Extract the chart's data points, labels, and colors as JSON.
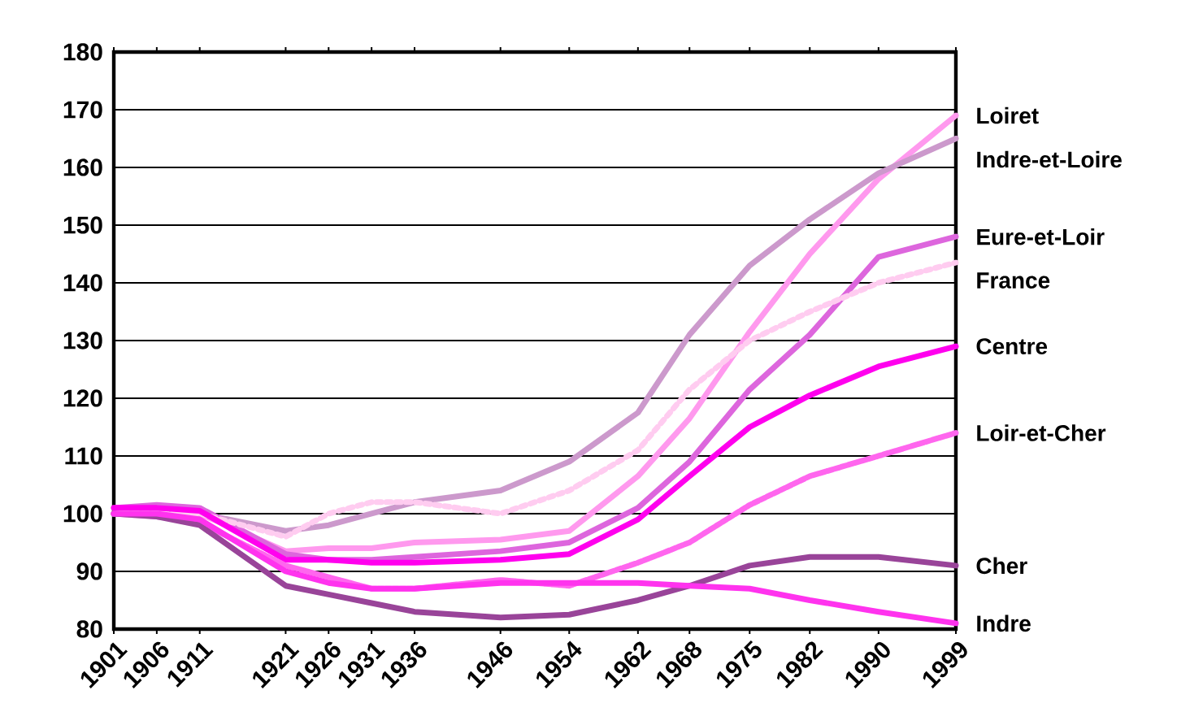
{
  "chart_data": {
    "type": "line",
    "x": [
      1901,
      1906,
      1911,
      1921,
      1926,
      1931,
      1936,
      1946,
      1954,
      1962,
      1968,
      1975,
      1982,
      1990,
      1999
    ],
    "xlim": [
      1901,
      1999
    ],
    "xticks": [
      1901,
      1906,
      1911,
      1921,
      1926,
      1931,
      1936,
      1946,
      1954,
      1962,
      1968,
      1975,
      1982,
      1990,
      1999
    ],
    "ylim": [
      80,
      180
    ],
    "yticks": [
      80,
      90,
      100,
      110,
      120,
      130,
      140,
      150,
      160,
      170,
      180
    ],
    "grid": "y",
    "marker": "none",
    "series": [
      {
        "name": "Loiret",
        "color": "#ff99ee",
        "values": [
          100,
          100,
          100,
          93.5,
          94,
          94,
          95,
          95.5,
          97,
          106.5,
          116.5,
          131.5,
          145,
          158,
          169
        ]
      },
      {
        "name": "Indre-et-Loire",
        "color": "#cc99cc",
        "values": [
          100,
          100,
          100,
          97,
          98,
          100,
          102,
          104,
          109,
          117.5,
          131,
          143,
          151,
          159,
          165
        ]
      },
      {
        "name": "Eure-et-Loir",
        "color": "#dd66dd",
        "values": [
          101,
          101.5,
          101,
          93,
          92,
          92,
          92.5,
          93.5,
          95,
          101,
          109,
          121.5,
          131,
          144.5,
          148
        ]
      },
      {
        "name": "France",
        "color": "#ffccf0",
        "line_style": "dashed",
        "values": [
          100,
          100,
          100,
          96,
          100,
          102,
          102,
          100,
          104,
          111,
          121.5,
          130,
          135,
          140,
          143.5
        ]
      },
      {
        "name": "Centre",
        "color": "#ff00ee",
        "values": [
          101,
          101,
          100.5,
          92,
          92,
          91.5,
          91.5,
          92,
          93,
          99,
          106.5,
          115,
          120.5,
          125.5,
          129
        ]
      },
      {
        "name": "Loir-et-Cher",
        "color": "#ff66ee",
        "line_style": "dotted",
        "values": [
          100,
          99.5,
          98.5,
          91,
          89,
          87,
          87,
          88.5,
          87.5,
          91.5,
          95,
          101.5,
          106.5,
          110,
          114
        ]
      },
      {
        "name": "Cher",
        "color": "#994499",
        "values": [
          100,
          99.5,
          98,
          87.5,
          86,
          84.5,
          83,
          82,
          82.5,
          85,
          87.5,
          91,
          92.5,
          92.5,
          91
        ]
      },
      {
        "name": "Indre",
        "color": "#ff33ee",
        "values": [
          100,
          100,
          99,
          90,
          88,
          87,
          87,
          88,
          88,
          88,
          87.5,
          87,
          85,
          83,
          81
        ]
      }
    ]
  }
}
